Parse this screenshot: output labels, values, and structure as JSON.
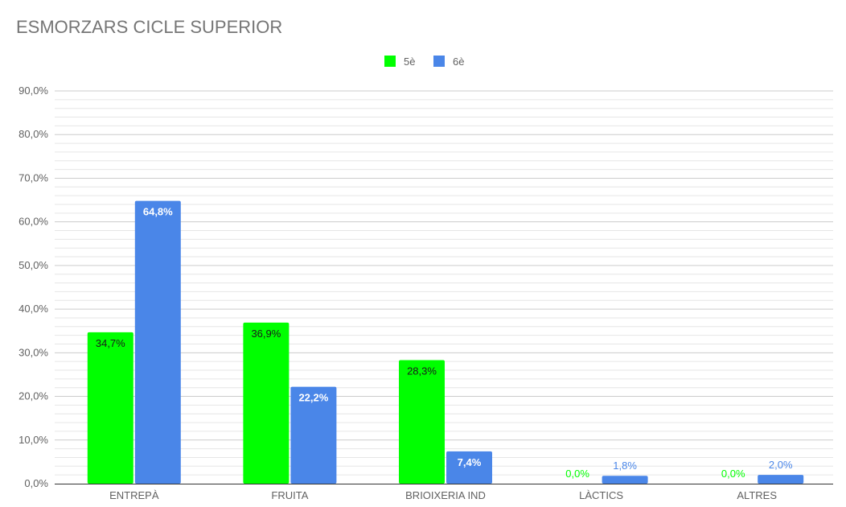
{
  "chart_data": {
    "type": "bar",
    "title": "ESMORZARS CICLE SUPERIOR",
    "categories": [
      "ENTREPÀ",
      "FRUITA",
      "BRIOIXERIA IND",
      "LÀCTICS",
      "ALTRES"
    ],
    "series": [
      {
        "name": "5è",
        "color": "#00ff00",
        "values": [
          34.7,
          36.9,
          28.3,
          0.0,
          0.0
        ],
        "labels": [
          "34,7%",
          "36,9%",
          "28,3%",
          "0,0%",
          "0,0%"
        ]
      },
      {
        "name": "6è",
        "color": "#4a86e8",
        "values": [
          64.8,
          22.2,
          7.4,
          1.8,
          2.0
        ],
        "labels": [
          "64,8%",
          "22,2%",
          "7,4%",
          "1,8%",
          "2,0%"
        ]
      }
    ],
    "ylim": [
      0,
      90
    ],
    "yticks": [
      "0,0%",
      "10,0%",
      "20,0%",
      "30,0%",
      "40,0%",
      "50,0%",
      "60,0%",
      "70,0%",
      "80,0%",
      "90,0%"
    ],
    "xlabel": "",
    "ylabel": "",
    "grid": true,
    "legend": "top-center"
  }
}
